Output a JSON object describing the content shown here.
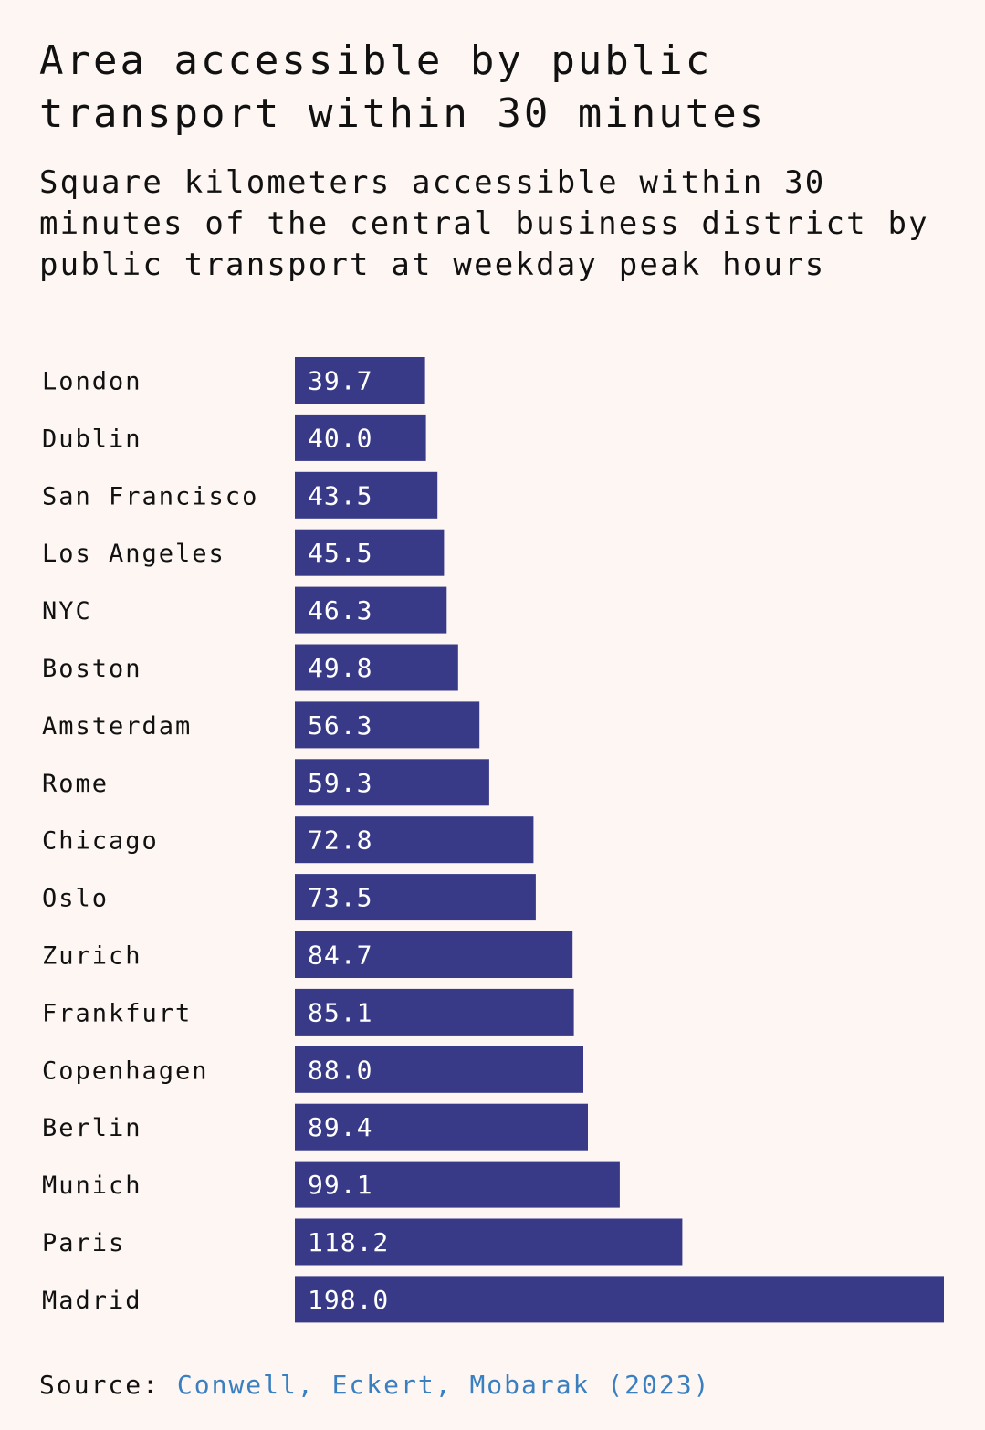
{
  "chart_data": {
    "type": "bar",
    "orientation": "horizontal",
    "title": "Area accessible by public transport within 30 minutes",
    "subtitle": "Square kilometers accessible within 30 minutes of the central business district by public transport at weekday peak hours",
    "categories": [
      "London",
      "Dublin",
      "San Francisco",
      "Los Angeles",
      "NYC",
      "Boston",
      "Amsterdam",
      "Rome",
      "Chicago",
      "Oslo",
      "Zurich",
      "Frankfurt",
      "Copenhagen",
      "Berlin",
      "Munich",
      "Paris",
      "Madrid"
    ],
    "values": [
      39.7,
      40.0,
      43.5,
      45.5,
      46.3,
      49.8,
      56.3,
      59.3,
      72.8,
      73.5,
      84.7,
      85.1,
      88.0,
      89.4,
      99.1,
      118.2,
      198.0
    ],
    "value_labels": [
      "39.7",
      "40.0",
      "43.5",
      "45.5",
      "46.3",
      "49.8",
      "56.3",
      "59.3",
      "72.8",
      "73.5",
      "84.7",
      "85.1",
      "88.0",
      "89.4",
      "99.1",
      "118.2",
      "198.0"
    ],
    "xlabel": "",
    "ylabel": "",
    "xlim": [
      0,
      198
    ],
    "bar_color": "#383a88"
  },
  "source": {
    "prefix": "Source:",
    "link_text": "Conwell, Eckert, Mobarak (2023)",
    "link_color": "#3a7fc0"
  },
  "colors": {
    "background": "#fdf6f3",
    "text": "#111111"
  }
}
